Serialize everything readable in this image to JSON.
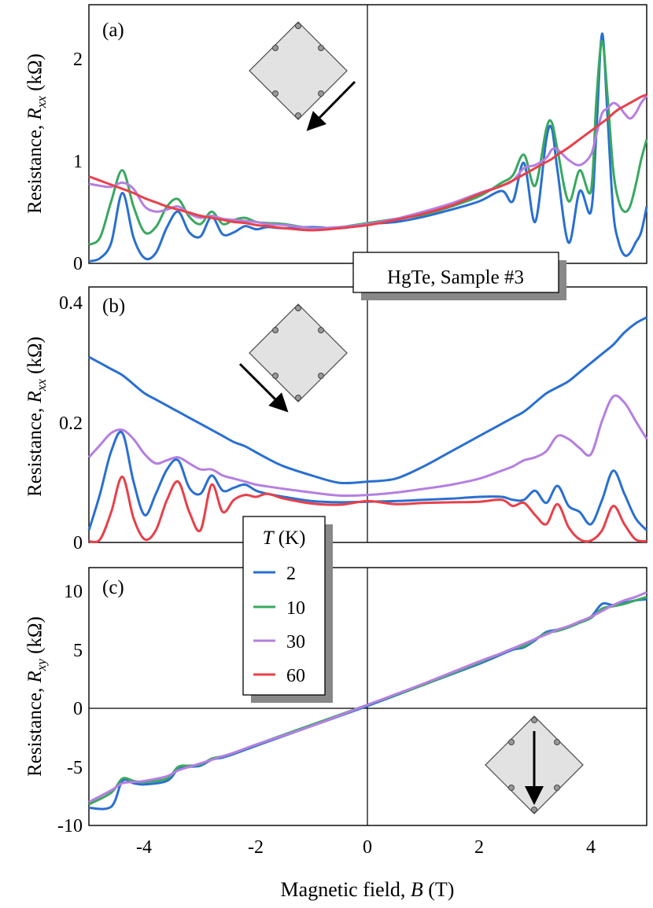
{
  "figure": {
    "annotation": "HgTe, Sample #3",
    "xlabel_prefix": "Magnetic field, ",
    "xlabel_var": "B",
    "xlabel_unit": " (T)",
    "x_ticks": [
      "-4",
      "-2",
      "0",
      "2",
      "4"
    ],
    "legend": {
      "title_var": "T",
      "title_unit": " (K)",
      "entries": [
        {
          "label": "2",
          "color": "#2a6fd1"
        },
        {
          "label": "10",
          "color": "#3aa860"
        },
        {
          "label": "30",
          "color": "#b57fe0"
        },
        {
          "label": "60",
          "color": "#e8404a"
        }
      ]
    },
    "panels": [
      {
        "label": "(a)",
        "ylabel_prefix": "Resistance, ",
        "ylabel_var": "R",
        "ylabel_sub": "xx",
        "ylabel_unit": " (kΩ)",
        "y_ticks": [
          "0",
          "1",
          "2"
        ],
        "arrow": "down-left"
      },
      {
        "label": "(b)",
        "ylabel_prefix": "Resistance, ",
        "ylabel_var": "R",
        "ylabel_sub": "xx",
        "ylabel_unit": " (kΩ)",
        "y_ticks": [
          "0",
          "0.2",
          "0.4"
        ],
        "arrow": "down-right"
      },
      {
        "label": "(c)",
        "ylabel_prefix": "Resistance, ",
        "ylabel_var": "R",
        "ylabel_sub": "xy",
        "ylabel_unit": " (kΩ)",
        "y_ticks": [
          "-10",
          "-5",
          "0",
          "5",
          "10"
        ],
        "arrow": "down"
      }
    ]
  },
  "chart_data": [
    {
      "type": "line",
      "title": "(a)",
      "xlabel": "Magnetic field, B (T)",
      "ylabel": "Resistance, Rxx (kΩ)",
      "xlim": [
        -5,
        5
      ],
      "ylim": [
        0,
        2.5
      ],
      "x": [
        -5,
        -4.8,
        -4.6,
        -4.4,
        -4.2,
        -4,
        -3.8,
        -3.6,
        -3.4,
        -3.2,
        -3,
        -2.8,
        -2.6,
        -2.4,
        -2.2,
        -2,
        -1.8,
        -1.5,
        -1,
        -0.5,
        0,
        0.5,
        1,
        1.5,
        2,
        2.4,
        2.6,
        2.8,
        3,
        3.2,
        3.3,
        3.4,
        3.6,
        3.8,
        4,
        4.1,
        4.2,
        4.3,
        4.4,
        4.5,
        4.6,
        4.7,
        4.8,
        4.9,
        5
      ],
      "series": [
        {
          "name": "2",
          "color": "#2a6fd1",
          "values": [
            0.02,
            0.05,
            0.2,
            0.68,
            0.25,
            0.05,
            0.1,
            0.35,
            0.5,
            0.3,
            0.26,
            0.45,
            0.28,
            0.3,
            0.36,
            0.33,
            0.35,
            0.34,
            0.35,
            0.34,
            0.38,
            0.4,
            0.45,
            0.52,
            0.6,
            0.7,
            0.6,
            0.97,
            0.4,
            1.2,
            1.3,
            0.9,
            0.2,
            0.7,
            0.5,
            1.3,
            2.22,
            1.4,
            0.5,
            0.2,
            0.08,
            0.1,
            0.2,
            0.3,
            0.55
          ]
        },
        {
          "name": "10",
          "color": "#3aa860",
          "values": [
            0.18,
            0.25,
            0.6,
            0.9,
            0.55,
            0.3,
            0.35,
            0.55,
            0.62,
            0.45,
            0.38,
            0.5,
            0.38,
            0.42,
            0.44,
            0.4,
            0.39,
            0.38,
            0.34,
            0.35,
            0.39,
            0.43,
            0.47,
            0.55,
            0.65,
            0.78,
            0.85,
            1.05,
            0.75,
            1.3,
            1.36,
            1.1,
            0.6,
            0.9,
            0.7,
            1.6,
            2.15,
            1.6,
            0.9,
            0.6,
            0.5,
            0.55,
            0.75,
            1.0,
            1.2
          ]
        },
        {
          "name": "30",
          "color": "#b57fe0",
          "values": [
            0.77,
            0.75,
            0.74,
            0.78,
            0.72,
            0.55,
            0.5,
            0.52,
            0.55,
            0.48,
            0.44,
            0.46,
            0.43,
            0.42,
            0.41,
            0.4,
            0.38,
            0.37,
            0.34,
            0.35,
            0.38,
            0.43,
            0.5,
            0.58,
            0.68,
            0.75,
            0.8,
            0.92,
            0.95,
            1.02,
            1.1,
            1.1,
            1.0,
            0.95,
            1.05,
            1.25,
            1.45,
            1.5,
            1.55,
            1.52,
            1.45,
            1.4,
            1.45,
            1.55,
            1.62
          ]
        },
        {
          "name": "60",
          "color": "#e8404a",
          "values": [
            0.84,
            0.8,
            0.76,
            0.72,
            0.68,
            0.63,
            0.59,
            0.55,
            0.52,
            0.49,
            0.46,
            0.44,
            0.42,
            0.4,
            0.39,
            0.37,
            0.36,
            0.34,
            0.32,
            0.34,
            0.37,
            0.42,
            0.48,
            0.56,
            0.67,
            0.75,
            0.8,
            0.86,
            0.92,
            0.98,
            1.01,
            1.05,
            1.12,
            1.2,
            1.28,
            1.32,
            1.36,
            1.4,
            1.45,
            1.49,
            1.52,
            1.55,
            1.58,
            1.61,
            1.63
          ]
        }
      ]
    },
    {
      "type": "line",
      "title": "(b)",
      "xlabel": "Magnetic field, B (T)",
      "ylabel": "Resistance, Rxx (kΩ)",
      "xlim": [
        -5,
        5
      ],
      "ylim": [
        0,
        0.42
      ],
      "x": [
        -5,
        -4.8,
        -4.6,
        -4.4,
        -4.2,
        -4,
        -3.8,
        -3.6,
        -3.4,
        -3.2,
        -3,
        -2.8,
        -2.6,
        -2.4,
        -2.2,
        -2,
        -1.8,
        -1.5,
        -1,
        -0.5,
        0,
        0.5,
        1,
        1.5,
        2,
        2.4,
        2.6,
        2.8,
        3,
        3.2,
        3.4,
        3.6,
        3.8,
        4,
        4.2,
        4.4,
        4.6,
        4.8,
        5
      ],
      "series": [
        {
          "name": "2",
          "color": "#2a6fd1",
          "values": [
            0.305,
            0.295,
            0.285,
            0.275,
            0.26,
            0.245,
            0.235,
            0.225,
            0.215,
            0.205,
            0.195,
            0.185,
            0.175,
            0.165,
            0.158,
            0.148,
            0.138,
            0.125,
            0.11,
            0.098,
            0.1,
            0.105,
            0.125,
            0.15,
            0.175,
            0.195,
            0.205,
            0.215,
            0.23,
            0.245,
            0.255,
            0.265,
            0.28,
            0.295,
            0.31,
            0.325,
            0.345,
            0.36,
            0.37
          ]
        },
        {
          "name": "30",
          "color": "#b57fe0",
          "values": [
            0.14,
            0.16,
            0.18,
            0.185,
            0.17,
            0.145,
            0.13,
            0.135,
            0.14,
            0.13,
            0.12,
            0.12,
            0.11,
            0.105,
            0.1,
            0.095,
            0.092,
            0.088,
            0.082,
            0.077,
            0.078,
            0.082,
            0.088,
            0.095,
            0.105,
            0.118,
            0.125,
            0.135,
            0.14,
            0.15,
            0.175,
            0.17,
            0.155,
            0.145,
            0.2,
            0.24,
            0.23,
            0.2,
            0.17
          ]
        },
        {
          "name": "2 (oscillating)",
          "color": "#2a6fd1",
          "values": [
            0.02,
            0.08,
            0.15,
            0.18,
            0.1,
            0.045,
            0.08,
            0.12,
            0.135,
            0.09,
            0.08,
            0.11,
            0.085,
            0.09,
            0.095,
            0.085,
            0.08,
            0.075,
            0.068,
            0.066,
            0.067,
            0.068,
            0.07,
            0.072,
            0.075,
            0.075,
            0.07,
            0.07,
            0.085,
            0.065,
            0.093,
            0.06,
            0.05,
            0.03,
            0.07,
            0.118,
            0.08,
            0.04,
            0.02
          ]
        },
        {
          "name": "60",
          "color": "#e8404a",
          "values": [
            0.002,
            0.005,
            0.05,
            0.108,
            0.04,
            0.005,
            0.02,
            0.07,
            0.1,
            0.05,
            0.02,
            0.095,
            0.05,
            0.07,
            0.078,
            0.075,
            0.08,
            0.072,
            0.064,
            0.062,
            0.068,
            0.063,
            0.065,
            0.066,
            0.067,
            0.07,
            0.06,
            0.065,
            0.045,
            0.03,
            0.063,
            0.025,
            0.005,
            0.003,
            0.02,
            0.06,
            0.03,
            0.005,
            0.002
          ]
        }
      ]
    },
    {
      "type": "line",
      "title": "(c)",
      "xlabel": "Magnetic field, B (T)",
      "ylabel": "Resistance, Rxy (kΩ)",
      "xlim": [
        -5,
        5
      ],
      "ylim": [
        -10,
        12
      ],
      "x": [
        -5,
        -4.6,
        -4.4,
        -4.2,
        -4,
        -3.6,
        -3.4,
        -3.2,
        -3,
        -2.8,
        -2.6,
        -2.4,
        -2,
        -1,
        0,
        1,
        2,
        2.4,
        2.6,
        2.8,
        3,
        3.2,
        3.4,
        3.6,
        3.8,
        4,
        4.2,
        4.4,
        4.6,
        4.8,
        5
      ],
      "series": [
        {
          "name": "2",
          "color": "#2a6fd1",
          "values": [
            -8.5,
            -8.4,
            -6.2,
            -6.4,
            -6.5,
            -6.2,
            -5.2,
            -5.0,
            -4.9,
            -4.4,
            -4.2,
            -3.9,
            -3.2,
            -1.5,
            0.2,
            2.0,
            3.8,
            4.6,
            5.0,
            5.2,
            5.8,
            6.5,
            6.7,
            7.0,
            7.4,
            7.8,
            8.9,
            8.8,
            9.0,
            9.2,
            9.3
          ]
        },
        {
          "name": "10",
          "color": "#3aa860",
          "values": [
            -8.2,
            -7.2,
            -6.0,
            -6.2,
            -6.3,
            -6.0,
            -5.0,
            -4.9,
            -4.8,
            -4.3,
            -4.1,
            -3.8,
            -3.1,
            -1.4,
            0.3,
            2.0,
            3.9,
            4.7,
            5.1,
            5.3,
            5.9,
            6.4,
            6.6,
            6.9,
            7.3,
            7.7,
            8.5,
            8.7,
            8.9,
            9.2,
            9.5
          ]
        },
        {
          "name": "30",
          "color": "#b57fe0",
          "values": [
            -8.0,
            -7.0,
            -6.4,
            -6.3,
            -6.2,
            -5.8,
            -5.3,
            -5.0,
            -4.7,
            -4.4,
            -4.1,
            -3.8,
            -3.1,
            -1.5,
            0.3,
            2.1,
            4.0,
            4.7,
            5.1,
            5.5,
            5.9,
            6.3,
            6.7,
            7.0,
            7.4,
            7.8,
            8.3,
            8.8,
            9.2,
            9.5,
            9.9
          ]
        }
      ]
    }
  ]
}
